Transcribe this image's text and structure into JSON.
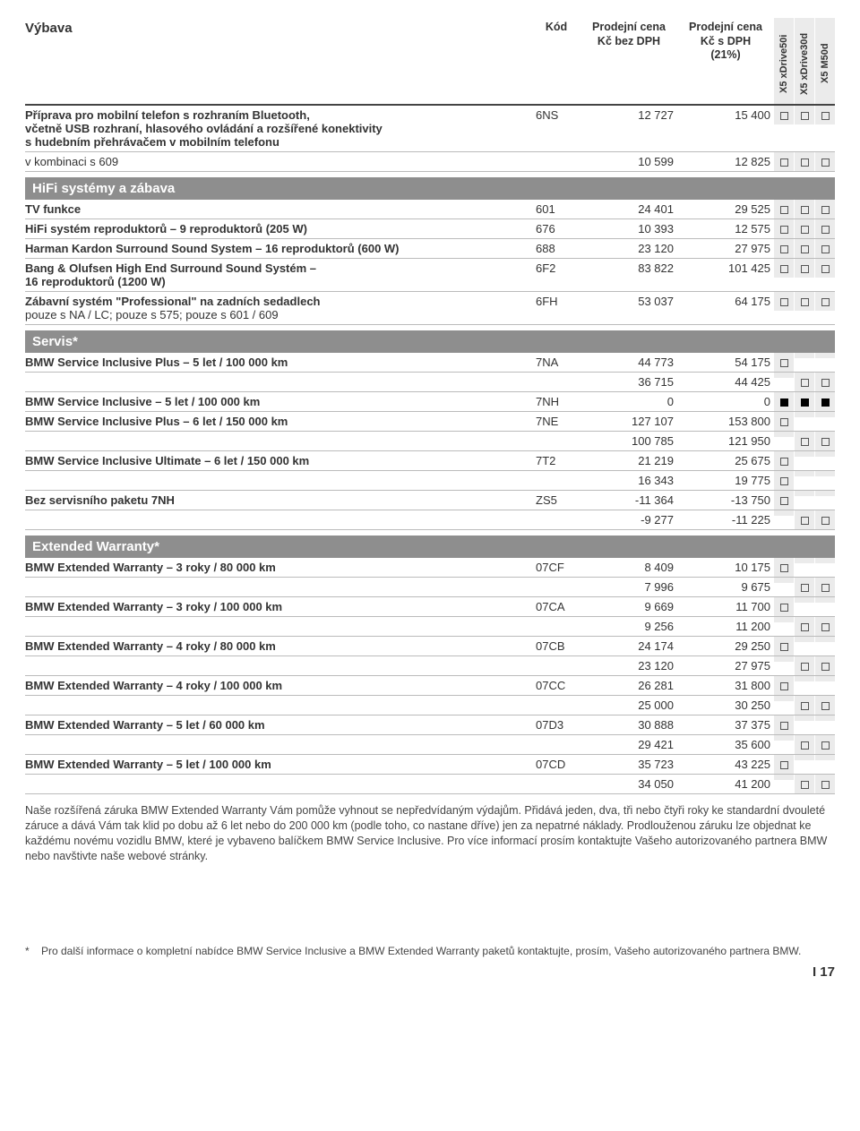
{
  "header": {
    "c0": "Výbava",
    "c1": "Kód",
    "c2": "Prodejní cena\nKč bez DPH",
    "c3": "Prodejní cena\nKč s DPH\n(21%)",
    "models": [
      "X5 xDrive50i",
      "X5 xDrive30d",
      "X5 M50d"
    ]
  },
  "intro": [
    {
      "name": "Příprava pro mobilní telefon s rozhraním Bluetooth,\nvčetně USB rozhraní, hlasového ovládání a rozšířené konektivity\ns hudebním přehrávačem v mobilním telefonu",
      "code": "6NS",
      "p1": "12 727",
      "p2": "15 400",
      "m": [
        "o",
        "o",
        "o"
      ],
      "bold": true
    },
    {
      "name": "v kombinaci s 609",
      "code": "",
      "p1": "10 599",
      "p2": "12 825",
      "m": [
        "o",
        "o",
        "o"
      ]
    }
  ],
  "sections": [
    {
      "title": "HiFi systémy a zábava",
      "rows": [
        {
          "name": "TV funkce",
          "code": "601",
          "p1": "24 401",
          "p2": "29 525",
          "m": [
            "o",
            "o",
            "o"
          ],
          "bold": true
        },
        {
          "name": "HiFi systém reproduktorů – 9 reproduktorů (205 W)",
          "code": "676",
          "p1": "10 393",
          "p2": "12 575",
          "m": [
            "o",
            "o",
            "o"
          ],
          "bold": true
        },
        {
          "name": "Harman Kardon Surround Sound System – 16 reproduktorů (600 W)",
          "code": "688",
          "p1": "23 120",
          "p2": "27 975",
          "m": [
            "o",
            "o",
            "o"
          ],
          "bold": true
        },
        {
          "name": "Bang & Olufsen High End Surround Sound Systém –\n16 reproduktorů (1200 W)",
          "code": "6F2",
          "p1": "83 822",
          "p2": "101 425",
          "m": [
            "o",
            "o",
            "o"
          ],
          "bold": true
        },
        {
          "name": "Zábavní systém \"Professional\" na zadních sedadlech",
          "sub": "pouze s NA / LC; pouze s 575; pouze s 601 / 609",
          "code": "6FH",
          "p1": "53 037",
          "p2": "64 175",
          "m": [
            "o",
            "o",
            "o"
          ],
          "bold": true
        }
      ]
    },
    {
      "title": "Servis*",
      "rows": [
        {
          "name": "BMW Service Inclusive Plus – 5 let / 100 000 km",
          "code": "7NA",
          "p1": "44 773",
          "p2": "54 175",
          "m": [
            "o",
            "",
            ""
          ],
          "bold": true
        },
        {
          "name": "",
          "code": "",
          "p1": "36 715",
          "p2": "44 425",
          "m": [
            "",
            "o",
            "o"
          ]
        },
        {
          "name": "BMW Service Inclusive – 5 let / 100 000 km",
          "code": "7NH",
          "p1": "0",
          "p2": "0",
          "m": [
            "f",
            "f",
            "f"
          ],
          "bold": true
        },
        {
          "name": "BMW Service Inclusive Plus – 6 let / 150 000 km",
          "code": "7NE",
          "p1": "127 107",
          "p2": "153 800",
          "m": [
            "o",
            "",
            ""
          ],
          "bold": true
        },
        {
          "name": "",
          "code": "",
          "p1": "100 785",
          "p2": "121 950",
          "m": [
            "",
            "o",
            "o"
          ]
        },
        {
          "name": "BMW Service Inclusive Ultimate – 6 let / 150 000 km",
          "code": "7T2",
          "p1": "21 219",
          "p2": "25 675",
          "m": [
            "o",
            "",
            ""
          ],
          "bold": true
        },
        {
          "name": "",
          "code": "",
          "p1": "16 343",
          "p2": "19 775",
          "m": [
            "o",
            "",
            ""
          ]
        },
        {
          "name": "Bez servisního paketu 7NH",
          "code": "ZS5",
          "p1": "-11 364",
          "p2": "-13 750",
          "m": [
            "o",
            "",
            ""
          ],
          "bold": true
        },
        {
          "name": "",
          "code": "",
          "p1": "-9 277",
          "p2": "-11 225",
          "m": [
            "",
            "o",
            "o"
          ]
        }
      ]
    },
    {
      "title": "Extended Warranty*",
      "rows": [
        {
          "name": "BMW Extended Warranty – 3 roky / 80 000 km",
          "code": "07CF",
          "p1": "8 409",
          "p2": "10 175",
          "m": [
            "o",
            "",
            ""
          ],
          "bold": true
        },
        {
          "name": "",
          "code": "",
          "p1": "7 996",
          "p2": "9 675",
          "m": [
            "",
            "o",
            "o"
          ]
        },
        {
          "name": "BMW Extended Warranty – 3 roky / 100 000 km",
          "code": "07CA",
          "p1": "9 669",
          "p2": "11 700",
          "m": [
            "o",
            "",
            ""
          ],
          "bold": true
        },
        {
          "name": "",
          "code": "",
          "p1": "9 256",
          "p2": "11 200",
          "m": [
            "",
            "o",
            "o"
          ]
        },
        {
          "name": "BMW Extended Warranty – 4 roky / 80 000 km",
          "code": "07CB",
          "p1": "24 174",
          "p2": "29 250",
          "m": [
            "o",
            "",
            ""
          ],
          "bold": true
        },
        {
          "name": "",
          "code": "",
          "p1": "23 120",
          "p2": "27 975",
          "m": [
            "",
            "o",
            "o"
          ]
        },
        {
          "name": "BMW Extended Warranty – 4 roky / 100 000 km",
          "code": "07CC",
          "p1": "26 281",
          "p2": "31 800",
          "m": [
            "o",
            "",
            ""
          ],
          "bold": true
        },
        {
          "name": "",
          "code": "",
          "p1": "25 000",
          "p2": "30 250",
          "m": [
            "",
            "o",
            "o"
          ]
        },
        {
          "name": "BMW Extended Warranty – 5 let / 60 000 km",
          "code": "07D3",
          "p1": "30 888",
          "p2": "37 375",
          "m": [
            "o",
            "",
            ""
          ],
          "bold": true
        },
        {
          "name": "",
          "code": "",
          "p1": "29 421",
          "p2": "35 600",
          "m": [
            "",
            "o",
            "o"
          ]
        },
        {
          "name": "BMW Extended Warranty – 5 let / 100 000 km",
          "code": "07CD",
          "p1": "35 723",
          "p2": "43 225",
          "m": [
            "o",
            "",
            ""
          ],
          "bold": true
        },
        {
          "name": "",
          "code": "",
          "p1": "34 050",
          "p2": "41 200",
          "m": [
            "",
            "o",
            "o"
          ]
        }
      ]
    }
  ],
  "note": "Naše rozšířená záruka BMW Extended Warranty Vám pomůže vyhnout se nepředvídaným výdajům. Přidává jeden, dva, tři nebo čtyři roky ke standardní dvouleté záruce a dává Vám tak klid po dobu až 6 let nebo do 200 000 km (podle toho, co nastane dříve) jen za nepatrné náklady. Prodlouženou záruku lze objednat ke každému novému vozidlu BMW, které je vybaveno balíčkem BMW Service Inclusive. Pro více informací prosím kontaktujte Vašeho autorizovaného partnera BMW nebo navštivte naše webové stránky.",
  "footnote": {
    "ast": "*",
    "text": "Pro další informace o kompletní nabídce BMW Service Inclusive a BMW Extended Warranty paketů kontaktujte, prosím, Vašeho autorizovaného partnera BMW."
  },
  "page": "I 17"
}
